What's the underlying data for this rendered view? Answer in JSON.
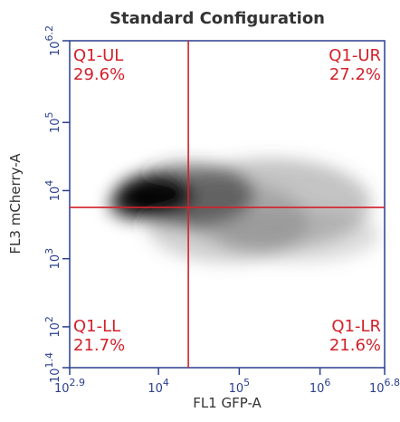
{
  "chart_data": {
    "type": "quadrant",
    "title": "Standard Configuration",
    "x_label": "FL1 GFP-A",
    "y_label": "FL3 mCherry-A",
    "log_x": true,
    "log_y": true,
    "xlim": [
      794.33,
      6309573.4
    ],
    "ylim": [
      25.12,
      1584893.2
    ],
    "xticks": [
      {
        "value": 794.33,
        "label": "10^2.9"
      },
      {
        "value": 10000,
        "label": "10^4"
      },
      {
        "value": 100000,
        "label": "10^5"
      },
      {
        "value": 1000000,
        "label": "10^6"
      },
      {
        "value": 6309573.4,
        "label": "10^6.8"
      }
    ],
    "yticks": [
      {
        "value": 25.12,
        "label": "10^1.4"
      },
      {
        "value": 100,
        "label": "10^2"
      },
      {
        "value": 1000,
        "label": "10^3"
      },
      {
        "value": 10000,
        "label": "10^4"
      },
      {
        "value": 100000,
        "label": "10^5"
      },
      {
        "value": 1584893.2,
        "label": "10^6.2"
      }
    ],
    "x_gate": 23400,
    "y_gate": 5650,
    "gate_color": "#d4202a",
    "categories": [
      "Q1-UL",
      "Q1-UR",
      "Q1-LL",
      "Q1-LR"
    ],
    "values": [
      29.6,
      27.2,
      21.7,
      21.6
    ],
    "value_labels": [
      "29.6%",
      "27.2%",
      "21.7%",
      "21.6%"
    ]
  }
}
